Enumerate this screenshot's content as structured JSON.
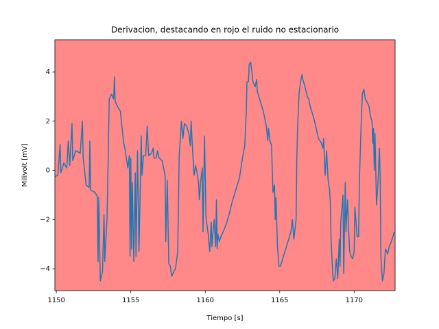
{
  "chart_data": {
    "type": "line",
    "title": "Derivacion, destacando en rojo el ruido no estacionario",
    "x_label": "Tiempo [s]",
    "y_label": "Milivolt [mV]",
    "background": "#ff8888",
    "color": "#1f77b4",
    "xlim": [
      1149.9,
      1172.75
    ],
    "ylim": [
      -4.89,
      5.31
    ],
    "xticks": [
      1150,
      1155,
      1160,
      1165,
      1170
    ],
    "yticks": [
      {
        "value": -4,
        "label": "−4"
      },
      {
        "value": -2,
        "label": "−2"
      },
      0,
      2,
      4
    ],
    "x": [
      1149.9,
      1150.1,
      1150.25,
      1150.3,
      1150.5,
      1150.7,
      1150.8,
      1150.9,
      1151.05,
      1151.1,
      1151.3,
      1151.6,
      1151.75,
      1151.8,
      1152.0,
      1152.2,
      1152.25,
      1152.3,
      1152.6,
      1152.75,
      1152.8,
      1152.85,
      1152.95,
      1153.1,
      1153.2,
      1153.25,
      1153.4,
      1153.45,
      1153.55,
      1153.7,
      1153.85,
      1153.9,
      1153.95,
      1154.1,
      1154.3,
      1154.5,
      1154.6,
      1154.8,
      1154.9,
      1154.95,
      1155.0,
      1155.05,
      1155.1,
      1155.2,
      1155.3,
      1155.35,
      1155.45,
      1155.55,
      1155.65,
      1155.7,
      1155.75,
      1155.85,
      1156.0,
      1156.1,
      1156.2,
      1156.4,
      1156.5,
      1156.55,
      1156.7,
      1156.8,
      1156.9,
      1157.1,
      1157.3,
      1157.35,
      1157.45,
      1157.55,
      1157.65,
      1157.75,
      1157.9,
      1158.0,
      1158.15,
      1158.25,
      1158.4,
      1158.5,
      1158.6,
      1158.75,
      1158.9,
      1159.0,
      1159.05,
      1159.15,
      1159.25,
      1159.35,
      1159.45,
      1159.55,
      1159.6,
      1159.7,
      1159.8,
      1159.85,
      1159.95,
      1160.05,
      1160.15,
      1160.2,
      1160.3,
      1160.4,
      1160.45,
      1160.55,
      1160.6,
      1160.7,
      1160.75,
      1160.8,
      1160.85,
      1160.95,
      1161.05,
      1161.2,
      1161.4,
      1161.6,
      1161.8,
      1162.0,
      1162.3,
      1162.5,
      1162.65,
      1162.75,
      1162.8,
      1162.9,
      1162.95,
      1163.05,
      1163.15,
      1163.2,
      1163.35,
      1163.45,
      1163.5,
      1163.7,
      1163.9,
      1164.1,
      1164.2,
      1164.25,
      1164.35,
      1164.45,
      1164.55,
      1164.65,
      1164.7,
      1164.75,
      1164.85,
      1164.95,
      1165.05,
      1165.2,
      1165.4,
      1165.6,
      1165.75,
      1165.85,
      1165.95,
      1166.1,
      1166.15,
      1166.2,
      1166.3,
      1166.4,
      1166.5,
      1166.55,
      1166.7,
      1166.85,
      1166.95,
      1167.05,
      1167.15,
      1167.3,
      1167.45,
      1167.6,
      1167.8,
      1167.9,
      1167.95,
      1168.05,
      1168.15,
      1168.25,
      1168.35,
      1168.4,
      1168.45,
      1168.55,
      1168.6,
      1168.7,
      1168.8,
      1168.9,
      1169.0,
      1169.05,
      1169.1,
      1169.25,
      1169.3,
      1169.4,
      1169.45,
      1169.55,
      1169.65,
      1169.7,
      1169.8,
      1169.9,
      1170.0,
      1170.05,
      1170.2,
      1170.3,
      1170.35,
      1170.45,
      1170.55,
      1170.65,
      1170.75,
      1170.85,
      1171.0,
      1171.1,
      1171.2,
      1171.25,
      1171.3,
      1171.35,
      1171.4,
      1171.5,
      1171.6,
      1171.7,
      1171.75,
      1171.8,
      1171.9,
      1172.0,
      1172.1,
      1172.25,
      1172.35,
      1172.5,
      1172.7
    ],
    "values": [
      -0.25,
      -0.2,
      1.05,
      -0.1,
      0.3,
      0.1,
      1.2,
      0.2,
      1.9,
      0.4,
      0.8,
      0.7,
      2.0,
      0.5,
      -0.6,
      -0.7,
      1.2,
      -0.8,
      -0.9,
      -1.05,
      -3.7,
      -1.1,
      -4.5,
      -4.1,
      -1.8,
      -3.7,
      -2.0,
      -0.5,
      2.9,
      3.1,
      2.9,
      3.8,
      2.8,
      2.6,
      2.4,
      1.2,
      0.9,
      0.1,
      0.6,
      -3.5,
      0.5,
      -3.2,
      -0.5,
      -3.7,
      -0.1,
      -3.5,
      0.8,
      -3.3,
      -0.2,
      1.4,
      -0.2,
      0.6,
      0.6,
      1.8,
      0.6,
      0.7,
      0.9,
      0.5,
      0.5,
      0.8,
      0.5,
      0.4,
      -0.2,
      -2.9,
      -0.4,
      -3.8,
      -3.9,
      -4.3,
      -4.1,
      -4.0,
      -3.3,
      0.6,
      2.0,
      1.3,
      1.9,
      1.8,
      1.5,
      1.0,
      2.0,
      0.8,
      -0.2,
      0.2,
      -0.1,
      -0.5,
      -1.2,
      -0.4,
      0.1,
      -2.5,
      1.4,
      -1.9,
      -2.4,
      -2.6,
      -3.3,
      -2.1,
      -3.1,
      -2.3,
      -2.0,
      -3.1,
      -1.2,
      -3.2,
      -2.6,
      -2.9,
      -2.7,
      -2.5,
      -2.2,
      -1.8,
      -1.3,
      -0.9,
      -0.3,
      0.5,
      1.0,
      2.3,
      3.6,
      3.6,
      4.3,
      4.4,
      3.9,
      3.6,
      3.4,
      3.7,
      3.2,
      2.8,
      2.4,
      1.8,
      1.2,
      1.7,
      1.2,
      1.0,
      -0.9,
      -0.6,
      -2.0,
      -1.1,
      -3.1,
      -3.9,
      -3.9,
      -3.6,
      -3.2,
      -2.8,
      -2.5,
      -2.0,
      -2.8,
      -2.0,
      0.5,
      1.7,
      3.1,
      3.6,
      3.9,
      3.7,
      3.4,
      3.0,
      2.9,
      2.6,
      2.4,
      2.1,
      1.7,
      1.3,
      1.1,
      0.9,
      1.3,
      -0.2,
      0.8,
      -0.4,
      -0.8,
      -1.3,
      -2.8,
      -4.1,
      -4.5,
      -4.4,
      -3.6,
      -4.4,
      -2.8,
      -3.9,
      -2.1,
      -1.0,
      -4.2,
      -0.5,
      -2.5,
      -1.2,
      -2.7,
      -3.3,
      -3.5,
      -3.6,
      -3.3,
      -1.5,
      -2.7,
      -2.7,
      -0.5,
      1.5,
      3.1,
      3.3,
      2.9,
      2.8,
      2.6,
      2.2,
      2.0,
      1.1,
      1.7,
      0.0,
      1.5,
      -1.4,
      -0.5,
      0.9,
      -0.3,
      -3.6,
      -4.5,
      -4.2,
      -3.2,
      -3.4,
      -3.1,
      -2.9,
      -2.5
    ]
  }
}
